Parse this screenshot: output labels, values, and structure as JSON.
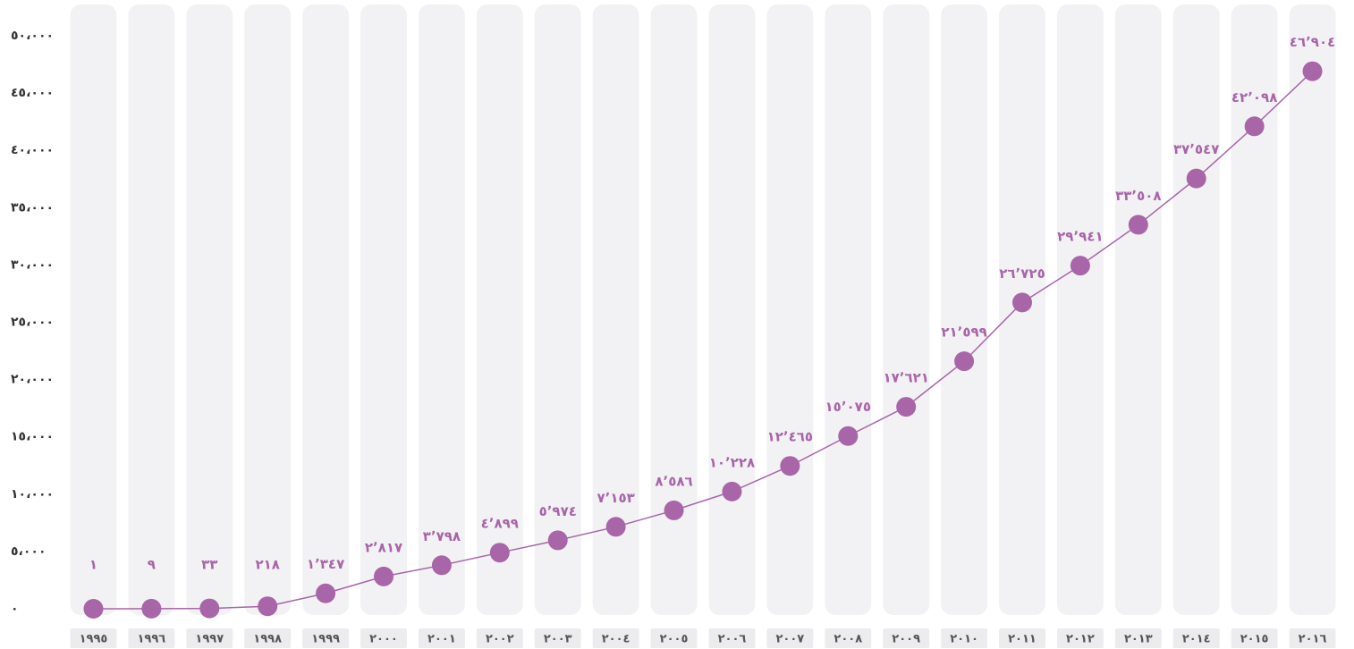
{
  "chart_data": {
    "type": "line",
    "categories": [
      "١٩٩٥",
      "١٩٩٦",
      "١٩٩٧",
      "١٩٩٨",
      "١٩٩٩",
      "٢٠٠٠",
      "٢٠٠١",
      "٢٠٠٢",
      "٢٠٠٣",
      "٢٠٠٤",
      "٢٠٠٥",
      "٢٠٠٦",
      "٢٠٠٧",
      "٢٠٠٨",
      "٢٠٠٩",
      "٢٠١٠",
      "٢٠١١",
      "٢٠١٢",
      "٢٠١٣",
      "٢٠١٤",
      "٢٠١٥",
      "٢٠١٦"
    ],
    "series": [
      {
        "color": "#a865a8",
        "values": [
          1,
          9,
          33,
          218,
          1347,
          2817,
          3798,
          4899,
          5974,
          7153,
          8586,
          10228,
          12465,
          15075,
          17621,
          21599,
          26725,
          29941,
          33508,
          37547,
          42098,
          46904
        ],
        "value_labels": [
          "١",
          "٩",
          "٣٣",
          "٢١٨",
          "١٬٣٤٧",
          "٢٬٨١٧",
          "٣٬٧٩٨",
          "٤٬٨٩٩",
          "٥٬٩٧٤",
          "٧٬١٥٣",
          "٨٬٥٨٦",
          "١٠٬٢٢٨",
          "١٢٬٤٦٥",
          "١٥٬٠٧٥",
          "١٧٬٦٢١",
          "٢١٬٥٩٩",
          "٢٦٬٧٢٥",
          "٢٩٬٩٤١",
          "٣٣٬٥٠٨",
          "٣٧٬٥٤٧",
          "٤٢٬٠٩٨",
          "٤٦٬٩٠٤"
        ]
      }
    ],
    "ylim": [
      0,
      50000
    ],
    "yticks": [
      {
        "value": 0,
        "label": "٠"
      },
      {
        "value": 5000,
        "label": "٥،٠٠٠"
      },
      {
        "value": 10000,
        "label": "١٠،٠٠٠"
      },
      {
        "value": 15000,
        "label": "١٥،٠٠٠"
      },
      {
        "value": 20000,
        "label": "٢٠،٠٠٠"
      },
      {
        "value": 25000,
        "label": "٢٥،٠٠٠"
      },
      {
        "value": 30000,
        "label": "٣٠،٠٠٠"
      },
      {
        "value": 35000,
        "label": "٣٥،٠٠٠"
      },
      {
        "value": 40000,
        "label": "٤٠،٠٠٠"
      },
      {
        "value": 45000,
        "label": "٤٥،٠٠٠"
      },
      {
        "value": 50000,
        "label": "٥٠،٠٠٠"
      }
    ]
  }
}
